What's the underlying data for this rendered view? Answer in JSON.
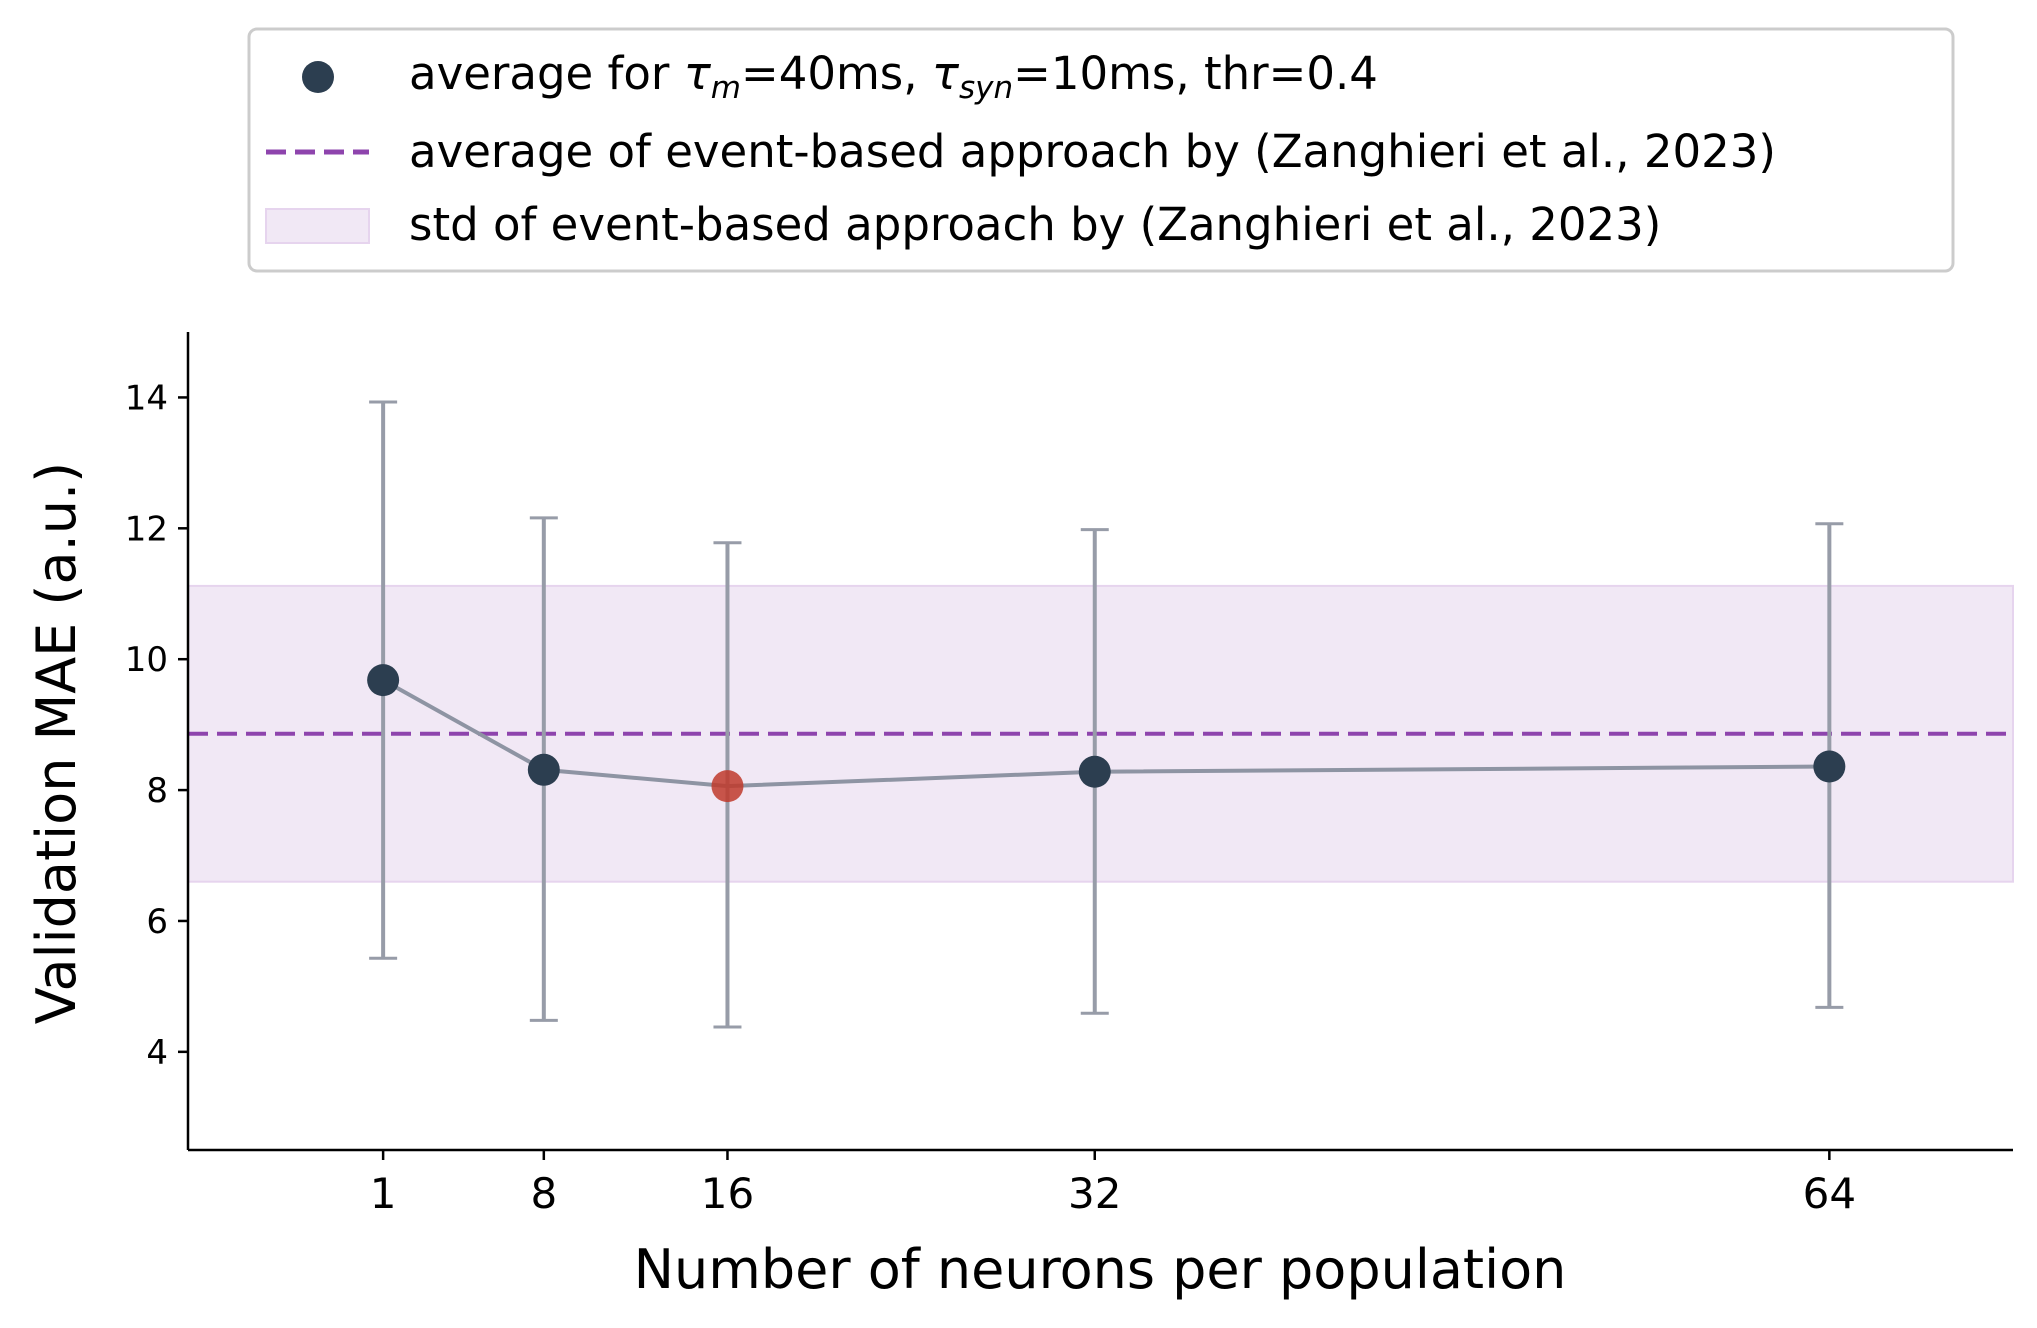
{
  "chart_data": {
    "type": "line",
    "xlabel": "Number of neurons per population",
    "ylabel": "Validation MAE (a.u.)",
    "xlim": [
      -7.5,
      72
    ],
    "ylim": [
      2.5,
      15
    ],
    "grid": false,
    "x_ticks": [
      1,
      8,
      16,
      32,
      64
    ],
    "x_tick_labels": [
      "1",
      "8",
      "16",
      "32",
      "64"
    ],
    "y_ticks": [
      4,
      6,
      8,
      10,
      12,
      14
    ],
    "y_tick_labels": [
      "4",
      "6",
      "8",
      "10",
      "12",
      "14"
    ],
    "series": [
      {
        "name": "average for τm=40ms, τsyn=10ms, thr=0.4",
        "x": [
          1,
          8,
          16,
          32,
          64
        ],
        "y": [
          9.68,
          8.31,
          8.06,
          8.28,
          8.36
        ],
        "err_low": [
          5.43,
          4.48,
          4.38,
          4.59,
          4.68
        ],
        "err_high": [
          13.93,
          12.16,
          11.78,
          11.98,
          12.07
        ],
        "highlighted_x": 16
      }
    ],
    "reference": {
      "mean": 8.86,
      "std_low": 6.6,
      "std_high": 11.12
    },
    "legend": {
      "placement": "top-center",
      "entries": [
        {
          "kind": "marker",
          "label_prefix": "average for ",
          "tau": "τ",
          "m_sub": "m",
          "mid": "=40ms, ",
          "syn_sub": "syn",
          "suffix": "=10ms, thr=0.4"
        },
        {
          "kind": "dashed-line",
          "label": "average of event-based approach by (Zanghieri et al., 2023)"
        },
        {
          "kind": "band",
          "label": "std of event-based approach by (Zanghieri et al., 2023)"
        }
      ]
    },
    "colors": {
      "marker": "#2c3e50",
      "highlight": "#c0392b",
      "line": "#8e94a3",
      "errorbar": "#979ca8",
      "mean_line": "#8e44ad",
      "band": "#f1e8f5",
      "band_edge": "#e6d4ee"
    }
  }
}
